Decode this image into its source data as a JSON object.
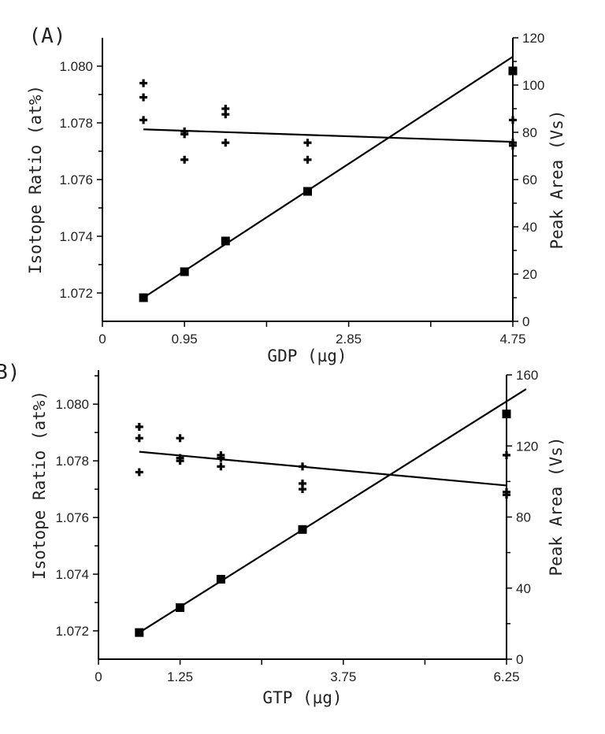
{
  "chart_data": [
    {
      "type": "scatter",
      "panel_label": "(A)",
      "xlabel": "GDP (µg)",
      "ylabel_left": "Isotope Ratio (at%)",
      "ylabel_right": "Peak Area (Vs)",
      "x_ticks": [
        "0",
        "0.95",
        "2.85",
        "4.75"
      ],
      "x_tick_values": [
        0,
        0.95,
        2.85,
        4.75
      ],
      "x_minor_ticks": [
        1.9,
        3.8
      ],
      "xlim": [
        0,
        4.75
      ],
      "ylim_left": [
        1.071,
        1.081
      ],
      "ylim_right": [
        0,
        120
      ],
      "y_left_ticks": [
        "1.072",
        "1.074",
        "1.076",
        "1.078",
        "1.080"
      ],
      "y_left_tick_values": [
        1.072,
        1.074,
        1.076,
        1.078,
        1.08
      ],
      "y_right_ticks": [
        "0",
        "20",
        "40",
        "60",
        "80",
        "100",
        "120"
      ],
      "y_right_tick_values": [
        0,
        20,
        40,
        60,
        80,
        100,
        120
      ],
      "series": [
        {
          "marker": "cross",
          "axis": "left",
          "x": [
            0.475,
            0.475,
            0.475,
            0.95,
            0.95,
            0.95,
            1.425,
            1.425,
            1.425,
            2.375,
            2.375,
            4.75,
            4.75,
            4.75
          ],
          "y": [
            1.0794,
            1.0789,
            1.0781,
            1.0777,
            1.0776,
            1.0767,
            1.0785,
            1.0783,
            1.0773,
            1.0773,
            1.0767,
            1.0781,
            1.0773,
            1.0772
          ]
        },
        {
          "marker": "square",
          "axis": "right",
          "x": [
            0.475,
            0.95,
            1.425,
            2.375,
            4.75
          ],
          "y": [
            10,
            21,
            34,
            55,
            106
          ]
        }
      ],
      "fit_lines": [
        {
          "axis": "left",
          "x": [
            0.475,
            4.75
          ],
          "y": [
            1.07777,
            1.07733
          ]
        },
        {
          "axis": "right",
          "x": [
            0.475,
            4.75
          ],
          "y": [
            10,
            112
          ]
        }
      ]
    },
    {
      "type": "scatter",
      "panel_label": "(B)",
      "xlabel": "GTP (µg)",
      "ylabel_left": "Isotope Ratio (at%)",
      "ylabel_right": "Peak Area (Vs)",
      "x_ticks": [
        "0",
        "1.25",
        "3.75",
        "6.25"
      ],
      "x_tick_values": [
        0,
        1.25,
        3.75,
        6.25
      ],
      "x_minor_ticks": [
        2.5,
        5.0
      ],
      "xlim": [
        0,
        6.25
      ],
      "ylim_left": [
        1.071,
        1.0812
      ],
      "ylim_right": [
        0,
        160
      ],
      "y_left_ticks": [
        "1.072",
        "1.074",
        "1.076",
        "1.078",
        "1.080"
      ],
      "y_left_tick_values": [
        1.072,
        1.074,
        1.076,
        1.078,
        1.08
      ],
      "y_right_ticks": [
        "0",
        "40",
        "80",
        "120",
        "160"
      ],
      "y_right_tick_values": [
        0,
        40,
        80,
        120,
        160
      ],
      "series": [
        {
          "marker": "cross",
          "axis": "left",
          "x": [
            0.625,
            0.625,
            0.625,
            1.25,
            1.25,
            1.25,
            1.875,
            1.875,
            1.875,
            3.125,
            3.125,
            3.125,
            6.25,
            6.25,
            6.25
          ],
          "y": [
            1.0792,
            1.0788,
            1.0776,
            1.0788,
            1.0781,
            1.078,
            1.0782,
            1.0781,
            1.0778,
            1.0778,
            1.0772,
            1.077,
            1.0782,
            1.0769,
            1.0768
          ]
        },
        {
          "marker": "square",
          "axis": "right",
          "x": [
            0.625,
            1.25,
            1.875,
            3.125,
            6.25
          ],
          "y": [
            15,
            29,
            45,
            73,
            138
          ]
        }
      ],
      "fit_lines": [
        {
          "axis": "left",
          "x": [
            0.625,
            6.25
          ],
          "y": [
            1.07832,
            1.07713
          ]
        },
        {
          "axis": "right",
          "x": [
            0.625,
            6.55
          ],
          "y": [
            15,
            152
          ]
        }
      ]
    }
  ]
}
